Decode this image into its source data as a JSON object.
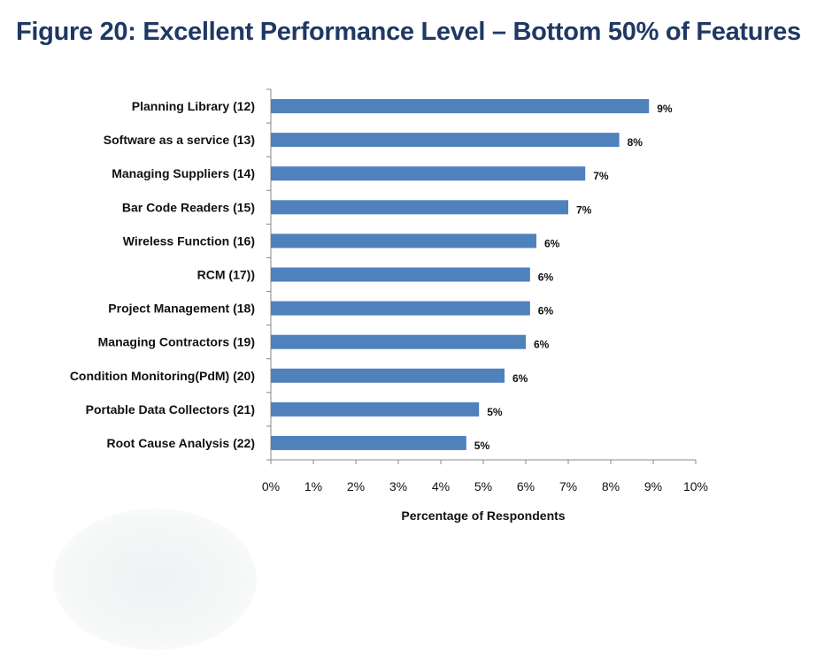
{
  "title": "Figure 20: Excellent Performance Level – Bottom 50% of Features",
  "chart_data": {
    "type": "bar",
    "orientation": "horizontal",
    "title": "Figure 20: Excellent Performance Level – Bottom 50% of Features",
    "xlabel": "Percentage of Respondents",
    "ylabel": "",
    "xlim": [
      0,
      10
    ],
    "grid": false,
    "bar_color": "#4f81bd",
    "categories": [
      "Planning Library (12)",
      "Software as a service (13)",
      "Managing Suppliers (14)",
      "Bar Code Readers (15)",
      "Wireless Function (16)",
      "RCM (17))",
      "Project Management (18)",
      "Managing Contractors (19)",
      "Condition Monitoring(PdM) (20)",
      "Portable Data Collectors (21)",
      "Root Cause Analysis (22)"
    ],
    "values": [
      8.9,
      8.2,
      7.4,
      7.0,
      6.25,
      6.1,
      6.1,
      6.0,
      5.5,
      4.9,
      4.6
    ],
    "data_labels": [
      "9%",
      "8%",
      "7%",
      "7%",
      "6%",
      "6%",
      "6%",
      "6%",
      "6%",
      "5%",
      "5%"
    ],
    "tick_labels": [
      "0%",
      "1%",
      "2%",
      "3%",
      "4%",
      "5%",
      "6%",
      "7%",
      "8%",
      "9%",
      "10%"
    ]
  }
}
